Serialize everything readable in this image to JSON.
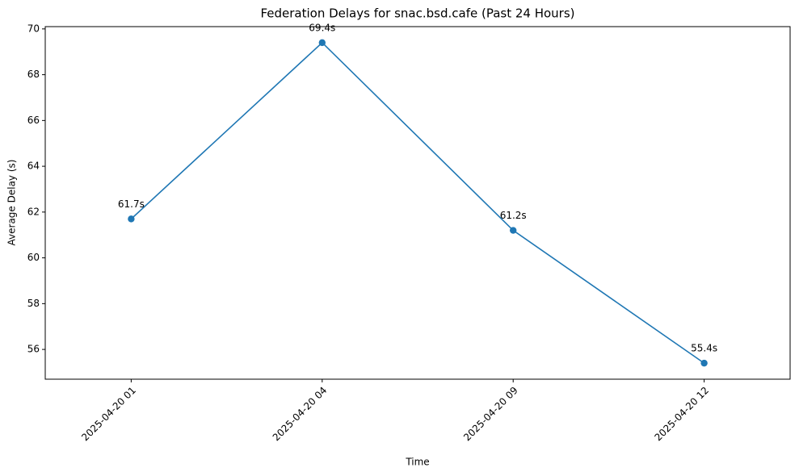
{
  "chart_data": {
    "type": "line",
    "title": "Federation Delays for snac.bsd.cafe (Past 24 Hours)",
    "x_label": "Time",
    "y_label": "Average Delay (s)",
    "categories": [
      "2025-04-20 01",
      "2025-04-20 04",
      "2025-04-20 09",
      "2025-04-20 12"
    ],
    "series": [
      {
        "name": "Average Delay",
        "color": "#1f77b4",
        "values": [
          61.7,
          69.4,
          61.2,
          55.4
        ],
        "value_labels": [
          "61.7s",
          "69.4s",
          "61.2s",
          "55.4s"
        ]
      }
    ],
    "ylim": [
      54.7,
      70.1
    ],
    "yticks": [
      56,
      58,
      60,
      62,
      64,
      66,
      68,
      70
    ],
    "grid": false
  }
}
